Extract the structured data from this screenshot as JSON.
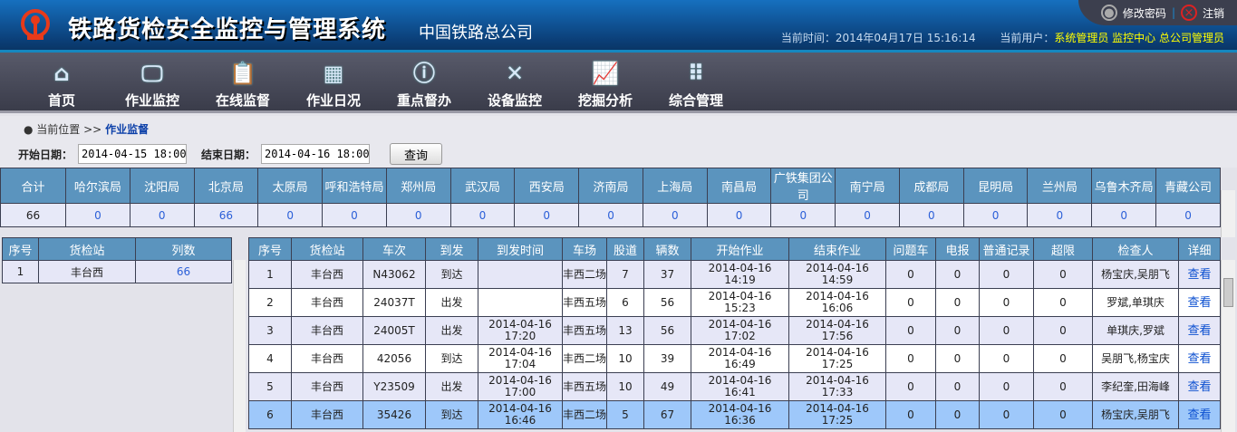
{
  "header": {
    "title": "铁路货检安全监控与管理系统",
    "subtitle": "中国铁路总公司",
    "change_password": "修改密码",
    "logout": "注销",
    "time_label": "当前时间：",
    "time": "2014年04月17日 15:16:14",
    "user_label": "当前用户：",
    "user": "系统管理员 监控中心 总公司管理员"
  },
  "nav": [
    {
      "label": "首页",
      "icon": "home-icon",
      "glyph": "⌂"
    },
    {
      "label": "作业监控",
      "icon": "monitor-icon",
      "glyph": "🖵"
    },
    {
      "label": "在线监督",
      "icon": "clipboard-icon",
      "glyph": "📋"
    },
    {
      "label": "作业日况",
      "icon": "cart-icon",
      "glyph": "▦"
    },
    {
      "label": "重点督办",
      "icon": "info-icon",
      "glyph": "ⓘ"
    },
    {
      "label": "设备监控",
      "icon": "tools-icon",
      "glyph": "✕"
    },
    {
      "label": "挖掘分析",
      "icon": "chart-icon",
      "glyph": "📈"
    },
    {
      "label": "综合管理",
      "icon": "grid-icon",
      "glyph": "⠿"
    }
  ],
  "breadcrumb": {
    "prefix": "当前位置 >>",
    "current": "作业监督"
  },
  "filter": {
    "start_label": "开始日期：",
    "start": "2014-04-15 18:00",
    "end_label": "结束日期：",
    "end": "2014-04-16 18:00",
    "query": "查询"
  },
  "summary": {
    "headers": [
      "合计",
      "哈尔滨局",
      "沈阳局",
      "北京局",
      "太原局",
      "呼和浩特局",
      "郑州局",
      "武汉局",
      "西安局",
      "济南局",
      "上海局",
      "南昌局",
      "广铁集团公司",
      "南宁局",
      "成都局",
      "昆明局",
      "兰州局",
      "乌鲁木齐局",
      "青藏公司"
    ],
    "values": [
      "66",
      "0",
      "0",
      "66",
      "0",
      "0",
      "0",
      "0",
      "0",
      "0",
      "0",
      "0",
      "0",
      "0",
      "0",
      "0",
      "0",
      "0",
      "0"
    ]
  },
  "stations": {
    "headers": [
      "序号",
      "货检站",
      "列数"
    ],
    "rows": [
      [
        "1",
        "丰台西",
        "66"
      ]
    ]
  },
  "trains": {
    "headers": [
      "序号",
      "货检站",
      "车次",
      "到发",
      "到发时间",
      "车场",
      "股道",
      "辆数",
      "开始作业",
      "结束作业",
      "问题车",
      "电报",
      "普通记录",
      "超限",
      "检查人",
      "详细"
    ],
    "link": "查看",
    "rows": [
      [
        "1",
        "丰台西",
        "N43062",
        "到达",
        "",
        "丰西二场",
        "7",
        "37",
        "2014-04-16 14:19",
        "2014-04-16 14:59",
        "0",
        "0",
        "0",
        "0",
        "杨宝庆,吴朋飞"
      ],
      [
        "2",
        "丰台西",
        "24037T",
        "出发",
        "",
        "丰西五场",
        "6",
        "56",
        "2014-04-16 15:23",
        "2014-04-16 16:06",
        "0",
        "0",
        "0",
        "0",
        "罗斌,单琪庆"
      ],
      [
        "3",
        "丰台西",
        "24005T",
        "出发",
        "2014-04-16 17:20",
        "丰西五场",
        "13",
        "56",
        "2014-04-16 17:02",
        "2014-04-16 17:56",
        "0",
        "0",
        "0",
        "0",
        "单琪庆,罗斌"
      ],
      [
        "4",
        "丰台西",
        "42056",
        "到达",
        "2014-04-16 17:04",
        "丰西二场",
        "10",
        "39",
        "2014-04-16 16:49",
        "2014-04-16 17:25",
        "0",
        "0",
        "0",
        "0",
        "吴朋飞,杨宝庆"
      ],
      [
        "5",
        "丰台西",
        "Y23509",
        "出发",
        "2014-04-16 17:00",
        "丰西五场",
        "10",
        "49",
        "2014-04-16 16:41",
        "2014-04-16 17:33",
        "0",
        "0",
        "0",
        "0",
        "李纪奎,田海峰"
      ],
      [
        "6",
        "丰台西",
        "35426",
        "到达",
        "2014-04-16 16:46",
        "丰西二场",
        "5",
        "67",
        "2014-04-16 16:36",
        "2014-04-16 17:25",
        "0",
        "0",
        "0",
        "0",
        "杨宝庆,吴朋飞"
      ]
    ]
  }
}
